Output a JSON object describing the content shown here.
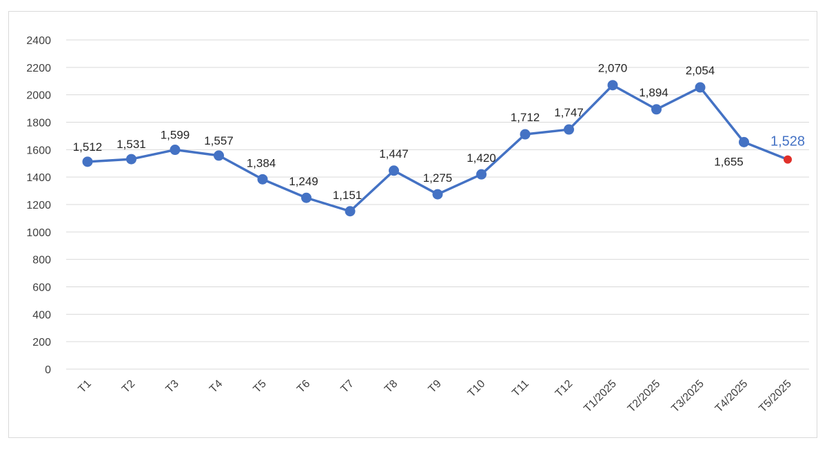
{
  "chart_data": {
    "type": "line",
    "title": "",
    "xlabel": "",
    "ylabel": "",
    "ylim": [
      0,
      2400
    ],
    "yticks": [
      0,
      200,
      400,
      600,
      800,
      1000,
      1200,
      1400,
      1600,
      1800,
      2000,
      2200,
      2400
    ],
    "grid": true,
    "categories": [
      "T1",
      "T2",
      "T3",
      "T4",
      "T5",
      "T6",
      "T7",
      "T8",
      "T9",
      "T10",
      "T11",
      "T12",
      "T1/2025",
      "T2/2025",
      "T3/2025",
      "T4/2025",
      "T5/2025"
    ],
    "series": [
      {
        "values": [
          1512,
          1531,
          1599,
          1557,
          1384,
          1249,
          1151,
          1447,
          1275,
          1420,
          1712,
          1747,
          2070,
          1894,
          2054,
          1655,
          1528
        ],
        "labels": [
          "1,512",
          "1,531",
          "1,599",
          "1,557",
          "1,384",
          "1,249",
          "1,151",
          "1,447",
          "1,275",
          "1,420",
          "1,712",
          "1,747",
          "2,070",
          "1,894",
          "2,054",
          "1,655",
          "1,528"
        ],
        "color": "#4472c4",
        "highlight_last_color": "#e0302a"
      }
    ]
  }
}
